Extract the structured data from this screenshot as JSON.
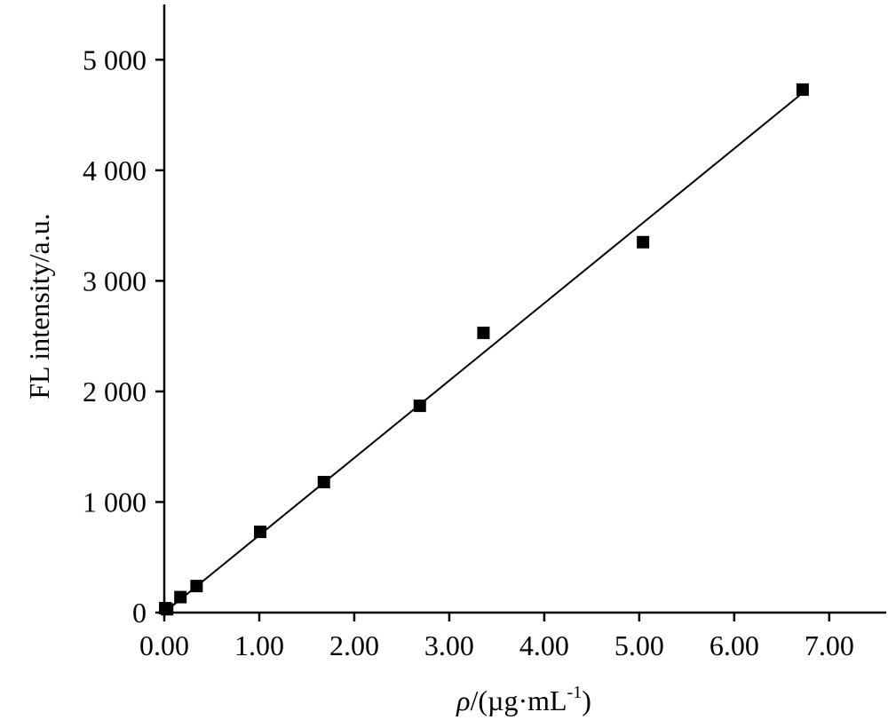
{
  "chart_data": {
    "type": "scatter",
    "title": "",
    "xlabel_symbol": "ρ",
    "xlabel_unit_prefix": "/(µg·mL",
    "xlabel_exponent": "-1",
    "xlabel_unit_suffix": ")",
    "ylabel": "FL intensity/a.u.",
    "xlim": [
      0,
      7.6
    ],
    "ylim": [
      0,
      5500
    ],
    "x_ticks": [
      0,
      1,
      2,
      3,
      4,
      5,
      6,
      7
    ],
    "x_tick_labels": [
      "0.00",
      "1.00",
      "2.00",
      "3.00",
      "4.00",
      "5.00",
      "6.00",
      "7.00"
    ],
    "y_ticks": [
      0,
      1000,
      2000,
      3000,
      4000,
      5000
    ],
    "y_tick_labels": [
      "0",
      "1 000",
      "2 000",
      "3 000",
      "4 000",
      "5 000"
    ],
    "grid": false,
    "legend": "none",
    "series": [
      {
        "marker": "square",
        "color": "#000000",
        "x": [
          0.01,
          0.03,
          0.17,
          0.34,
          1.01,
          1.68,
          2.69,
          3.36,
          5.04,
          6.72
        ],
        "y": [
          40,
          30,
          140,
          240,
          730,
          1180,
          1870,
          2530,
          3350,
          4730
        ]
      }
    ],
    "fit_line": {
      "x": [
        0.0,
        6.72
      ],
      "y": [
        0,
        4700
      ]
    }
  }
}
